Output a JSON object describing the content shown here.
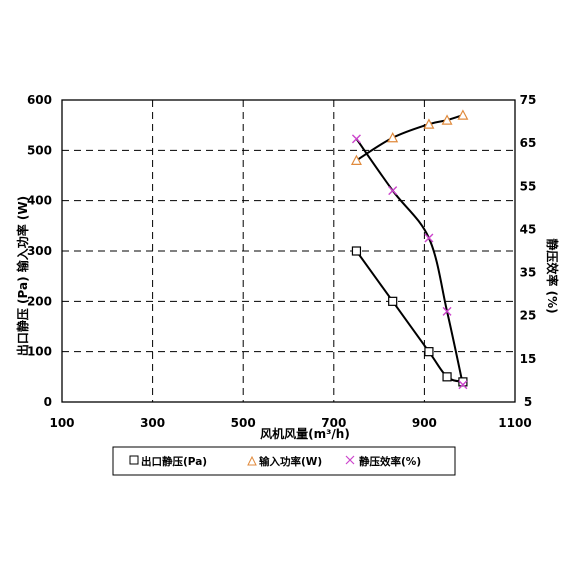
{
  "chart_data": {
    "type": "scatter",
    "xlabel": "风机风量(m³/h)",
    "ylabel_left": "出口静压 (Pa) 输入功率 (W)",
    "ylabel_right": "静压效率 (%)",
    "x_ticks": [
      "100",
      "300",
      "500",
      "700",
      "900",
      "1100"
    ],
    "y_left_ticks": [
      "0",
      "100",
      "200",
      "300",
      "400",
      "500",
      "600"
    ],
    "y_right_ticks": [
      "5",
      "15",
      "25",
      "35",
      "45",
      "55",
      "65",
      "75"
    ],
    "xlim": [
      100,
      1100
    ],
    "ylim_left": [
      0,
      600
    ],
    "ylim_right": [
      5,
      75
    ],
    "grid": true,
    "legend_position": "bottom",
    "series": [
      {
        "name": "出口静压(Pa)",
        "axis": "left",
        "marker": "square",
        "color": "#000000",
        "x": [
          750,
          830,
          910,
          950,
          985
        ],
        "y": [
          300,
          200,
          100,
          50,
          40
        ]
      },
      {
        "name": "输入功率(W)",
        "axis": "left",
        "marker": "triangle",
        "color": "#e08a3c",
        "x": [
          750,
          830,
          910,
          950,
          985
        ],
        "y": [
          480,
          525,
          552,
          560,
          570
        ]
      },
      {
        "name": "静压效率(%)",
        "axis": "right",
        "marker": "x",
        "color": "#cc44cc",
        "x": [
          750,
          830,
          910,
          950,
          985
        ],
        "y": [
          66,
          54,
          43,
          26,
          9
        ]
      }
    ]
  }
}
